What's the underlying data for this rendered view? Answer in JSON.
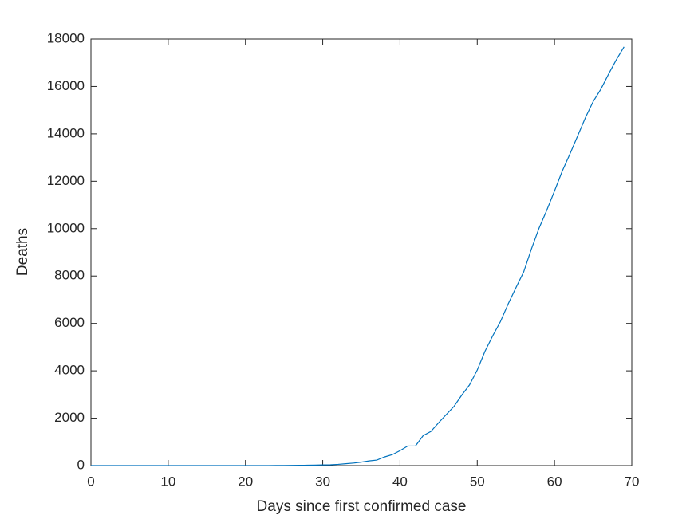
{
  "chart_data": {
    "type": "line",
    "xlabel": "Days since first confirmed case",
    "ylabel": "Deaths",
    "x": [
      0,
      1,
      2,
      3,
      4,
      5,
      6,
      7,
      8,
      9,
      10,
      11,
      12,
      13,
      14,
      15,
      16,
      17,
      18,
      19,
      20,
      21,
      22,
      23,
      24,
      25,
      26,
      27,
      28,
      29,
      30,
      31,
      32,
      33,
      34,
      35,
      36,
      37,
      38,
      39,
      40,
      41,
      42,
      43,
      44,
      45,
      46,
      47,
      48,
      49,
      50,
      51,
      52,
      53,
      54,
      55,
      56,
      57,
      58,
      59,
      60,
      61,
      62,
      63,
      64,
      65,
      66,
      67,
      68,
      69
    ],
    "series": [
      {
        "color": "#0072bd",
        "values": [
          0,
          0,
          0,
          0,
          0,
          0,
          0,
          0,
          0,
          0,
          0,
          0,
          0,
          0,
          0,
          0,
          0,
          0,
          0,
          0,
          0,
          0,
          1,
          2,
          3,
          7,
          10,
          12,
          17,
          21,
          29,
          34,
          52,
          79,
          107,
          148,
          197,
          233,
          366,
          463,
          631,
          827,
          827,
          1266,
          1441,
          1809,
          2158,
          2503,
          2978,
          3405,
          4032,
          4825,
          5476,
          6077,
          6820,
          7503,
          8165,
          9134,
          10023,
          10779,
          11591,
          12428,
          13155,
          13915,
          14681,
          15362,
          15887,
          16523,
          17127,
          17669
        ]
      }
    ],
    "xlim": [
      0,
      70
    ],
    "xticks": [
      0,
      10,
      20,
      30,
      40,
      50,
      60,
      70
    ],
    "ylim": [
      0,
      18000
    ],
    "yticks": [
      0,
      2000,
      4000,
      6000,
      8000,
      10000,
      12000,
      14000,
      16000,
      18000
    ]
  }
}
